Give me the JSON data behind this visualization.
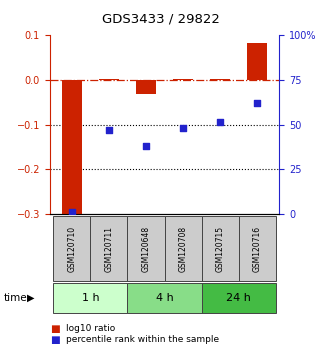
{
  "title": "GDS3433 / 29822",
  "samples": [
    "GSM120710",
    "GSM120711",
    "GSM120648",
    "GSM120708",
    "GSM120715",
    "GSM120716"
  ],
  "log10_ratio": [
    -0.305,
    0.002,
    -0.03,
    0.002,
    0.002,
    0.082
  ],
  "percentile_rank": [
    1.0,
    47.0,
    38.0,
    48.0,
    51.5,
    62.0
  ],
  "bar_color": "#cc2200",
  "scatter_color": "#2222cc",
  "left_ylim": [
    -0.3,
    0.1
  ],
  "right_ylim": [
    0,
    100
  ],
  "left_yticks": [
    -0.3,
    -0.2,
    -0.1,
    0.0,
    0.1
  ],
  "right_yticks": [
    0,
    25,
    50,
    75,
    100
  ],
  "right_yticklabels": [
    "0",
    "25",
    "50",
    "75",
    "100%"
  ],
  "hline_color": "#cc2200",
  "dotted_lines": [
    -0.1,
    -0.2
  ],
  "groups": [
    {
      "label": "1 h",
      "indices": [
        0,
        1
      ],
      "color": "#ccffcc"
    },
    {
      "label": "4 h",
      "indices": [
        2,
        3
      ],
      "color": "#88dd88"
    },
    {
      "label": "24 h",
      "indices": [
        4,
        5
      ],
      "color": "#44bb44"
    }
  ],
  "legend_red_label": "log10 ratio",
  "legend_blue_label": "percentile rank within the sample",
  "time_label": "time",
  "sample_box_color": "#cccccc",
  "sample_box_edge": "#444444"
}
